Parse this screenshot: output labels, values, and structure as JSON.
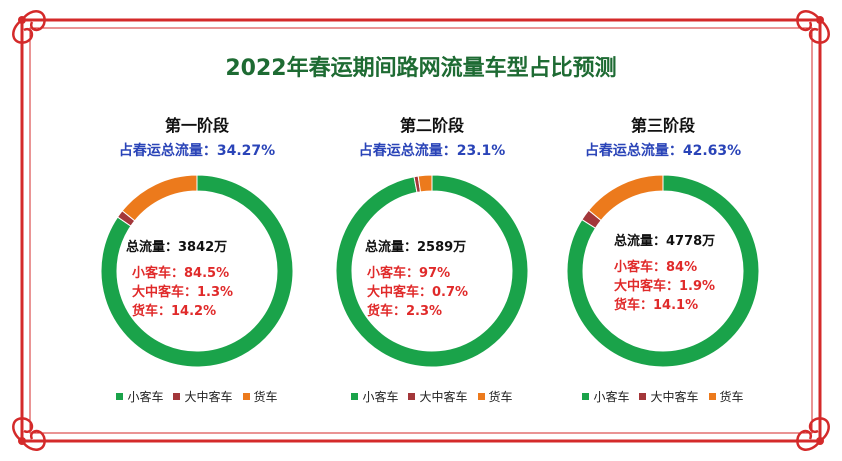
{
  "title": "2022年春运期间路网流量车型占比预测",
  "legend": [
    "小客车",
    "大中客车",
    "货车"
  ],
  "colors": {
    "small": "#1aa34a",
    "medium": "#a3373a",
    "truck": "#ec7a1c",
    "frame": "#d42a2a"
  },
  "panels": [
    {
      "stage": "第一阶段",
      "share_label": "占春运总流量：34.27%",
      "total_label": "总流量：3842万",
      "labels": [
        "小客车：84.5%",
        "大中客车：1.3%",
        "货车：14.2%"
      ]
    },
    {
      "stage": "第二阶段",
      "share_label": "占春运总流量：23.1%",
      "total_label": "总流量：2589万",
      "labels": [
        "小客车：97%",
        "大中客车：0.7%",
        "货车：2.3%"
      ]
    },
    {
      "stage": "第三阶段",
      "share_label": "占春运总流量：42.63%",
      "total_label": "总流量：4778万",
      "labels": [
        "小客车：84%",
        "大中客车：1.9%",
        "货车：14.1%"
      ]
    }
  ],
  "chart_data": [
    {
      "type": "pie",
      "title": "第一阶段",
      "categories": [
        "小客车",
        "大中客车",
        "货车"
      ],
      "values": [
        84.5,
        1.3,
        14.2
      ],
      "share_of_total": 34.27,
      "total": 3842
    },
    {
      "type": "pie",
      "title": "第二阶段",
      "categories": [
        "小客车",
        "大中客车",
        "货车"
      ],
      "values": [
        97,
        0.7,
        2.3
      ],
      "share_of_total": 23.1,
      "total": 2589
    },
    {
      "type": "pie",
      "title": "第三阶段",
      "categories": [
        "小客车",
        "大中客车",
        "货车"
      ],
      "values": [
        84,
        1.9,
        14.1
      ],
      "share_of_total": 42.63,
      "total": 4778
    }
  ]
}
